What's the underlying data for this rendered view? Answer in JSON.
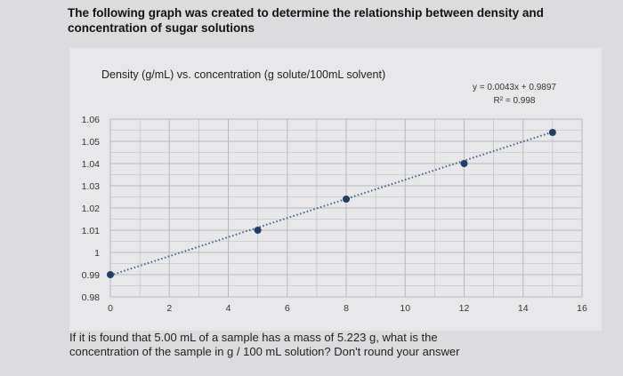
{
  "header": {
    "line1": "The following graph was created to determine the relationship between density and",
    "line2": "concentration of sugar solutions"
  },
  "footer": {
    "line1": "If it is found that 5.00 mL of a sample has a mass of 5.223 g, what is the",
    "line2": "concentration of the sample in g / 100 mL solution? Don't round your answer"
  },
  "chart_data": {
    "type": "scatter",
    "title": "Density (g/mL) vs. concentration (g solute/100mL solvent)",
    "xlabel": "",
    "ylabel": "",
    "xlim": [
      0,
      16
    ],
    "ylim": [
      0.98,
      1.06
    ],
    "x_ticks": [
      "0",
      "2",
      "4",
      "6",
      "8",
      "10",
      "12",
      "14",
      "16"
    ],
    "y_ticks": [
      "0.98",
      "0.99",
      "1",
      "1.01",
      "1.02",
      "1.03",
      "1.04",
      "1.05",
      "1.06"
    ],
    "grid": true,
    "points": [
      {
        "x": 0,
        "y": 0.99
      },
      {
        "x": 5,
        "y": 1.01
      },
      {
        "x": 8,
        "y": 1.024
      },
      {
        "x": 12,
        "y": 1.04
      },
      {
        "x": 15,
        "y": 1.054
      }
    ],
    "trendline": {
      "style": "dotted",
      "slope": 0.0043,
      "intercept": 0.9897,
      "equation": "y = 0.0043x + 0.9897",
      "r_squared": "R² = 0.998"
    },
    "colors": {
      "point": "#1f3f66",
      "trendline": "#3a5f8f",
      "grid": "#b9b9bc"
    }
  }
}
